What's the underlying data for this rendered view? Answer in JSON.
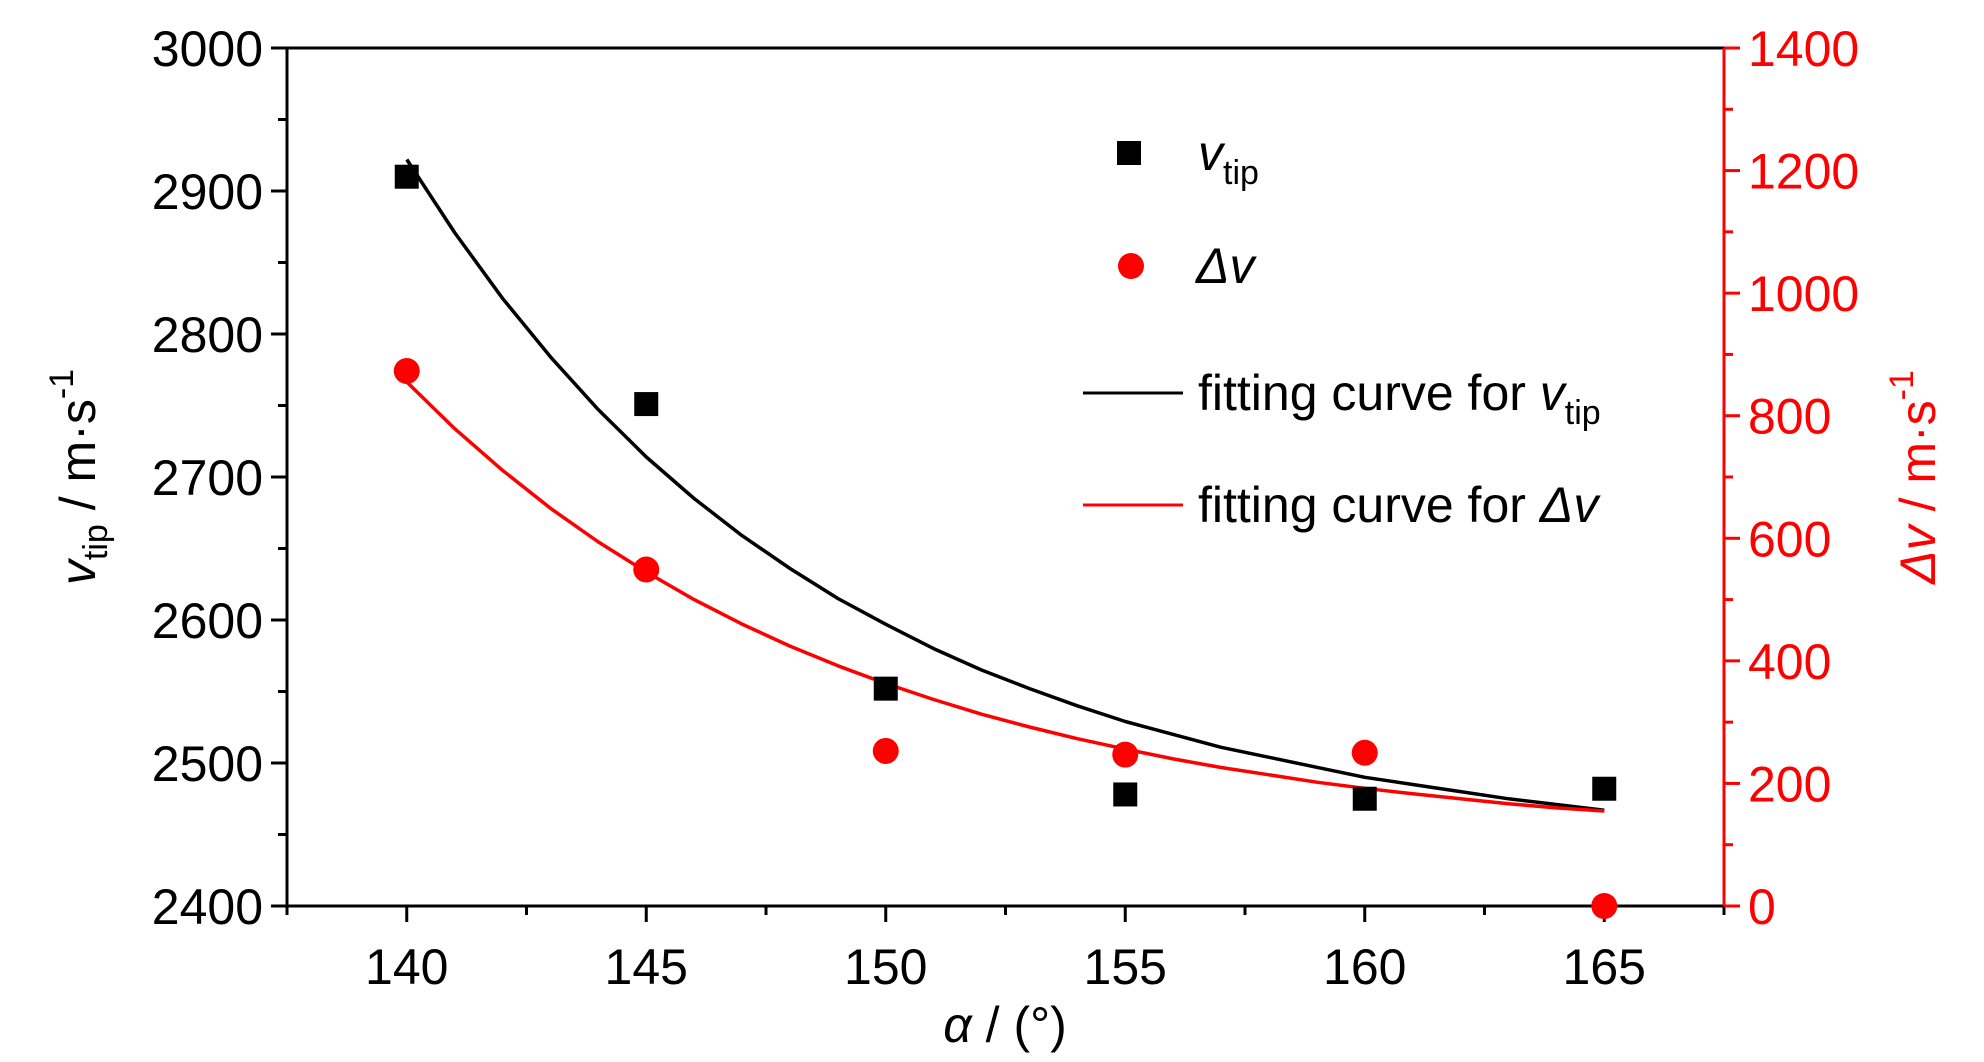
{
  "chart_data": {
    "type": "scatter",
    "x_axis": {
      "range": [
        137.5,
        167.5
      ],
      "ticks": [
        140,
        145,
        150,
        155,
        160,
        165
      ],
      "tick_labels": [
        "140",
        "145",
        "150",
        "155",
        "160",
        "165"
      ],
      "label_symbol": "α",
      "label_rest": " / (°)"
    },
    "y_axis_left": {
      "range": [
        2400,
        3000
      ],
      "ticks": [
        2400,
        2500,
        2600,
        2700,
        2800,
        2900,
        3000
      ],
      "tick_labels": [
        "2400",
        "2500",
        "2600",
        "2700",
        "2800",
        "2900",
        "3000"
      ],
      "label_main": "v",
      "label_sub": "tip",
      "label_rest": " / m·s",
      "label_sup": "-1",
      "color": "#000000"
    },
    "y_axis_right": {
      "range": [
        0,
        1400
      ],
      "ticks": [
        0,
        200,
        400,
        600,
        800,
        1000,
        1200,
        1400
      ],
      "tick_labels": [
        "0",
        "200",
        "400",
        "600",
        "800",
        "1000",
        "1200",
        "1400"
      ],
      "label_main": "Δv",
      "label_rest": " / m·s",
      "label_sup": "-1",
      "color": "#ff0000"
    },
    "series": [
      {
        "name": "v",
        "name_sub": "tip",
        "kind": "points",
        "marker": "square",
        "axis": "left",
        "color": "#000000",
        "x": [
          140,
          145,
          150,
          155,
          160,
          165
        ],
        "y": [
          2910,
          2751,
          2552,
          2478,
          2475,
          2482
        ]
      },
      {
        "name": "Δv",
        "kind": "points",
        "marker": "circle",
        "axis": "right",
        "color": "#ff0000",
        "x": [
          140,
          145,
          150,
          155,
          160,
          165
        ],
        "y": [
          873,
          549,
          253,
          247,
          250,
          0
        ]
      },
      {
        "name": "fitting curve for ",
        "name_ital": "v",
        "name_sub": "tip",
        "kind": "line",
        "axis": "left",
        "color": "#000000",
        "x": [
          140,
          141,
          142,
          143,
          144,
          145,
          146,
          147,
          148,
          149,
          150,
          151,
          152,
          153,
          154,
          155,
          156,
          157,
          158,
          159,
          160,
          161,
          162,
          163,
          164,
          165
        ],
        "y": [
          2922,
          2871,
          2825,
          2784,
          2747,
          2714,
          2685,
          2659,
          2636,
          2615,
          2597,
          2580,
          2565,
          2552,
          2540,
          2529,
          2520,
          2511,
          2504,
          2497,
          2490,
          2485,
          2480,
          2475,
          2471,
          2467
        ]
      },
      {
        "name": "fitting curve for ",
        "name_ital": "Δv",
        "kind": "line",
        "axis": "right",
        "color": "#ff0000",
        "x": [
          140,
          141,
          142,
          143,
          144,
          145,
          146,
          147,
          148,
          149,
          150,
          151,
          152,
          153,
          154,
          155,
          156,
          157,
          158,
          159,
          160,
          161,
          162,
          163,
          164,
          165
        ],
        "y": [
          855,
          779,
          711,
          649,
          594,
          545,
          500,
          460,
          424,
          392,
          363,
          337,
          313,
          292,
          273,
          256,
          240,
          226,
          214,
          202,
          192,
          183,
          175,
          167,
          160,
          155
        ]
      }
    ],
    "legend_position": "top-right",
    "grid": false
  }
}
